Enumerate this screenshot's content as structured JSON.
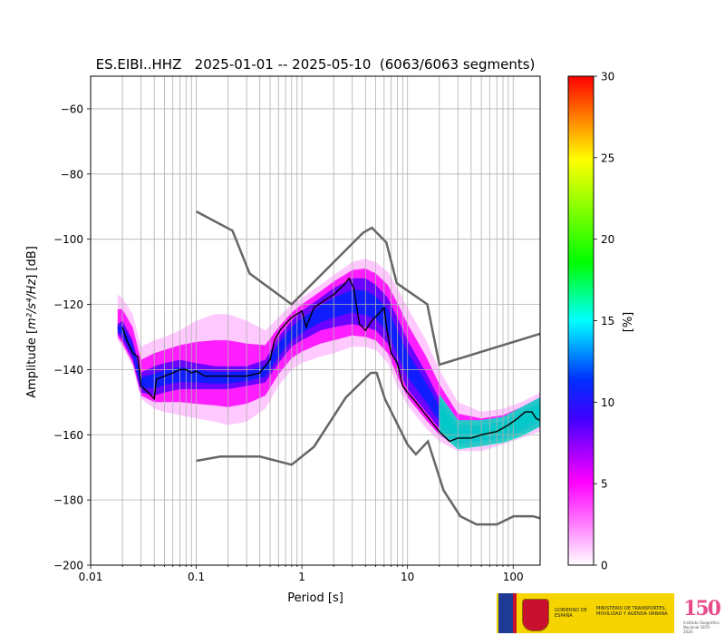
{
  "chart_data": {
    "type": "heatmap",
    "title": "ES.EIBI..HHZ   2025-01-01 -- 2025-05-10  (6063/6063 segments)",
    "xlabel": "Period [s]",
    "ylabel": "Amplitude [m²/s⁴/Hz] [dB]",
    "ylabel_base": "Amplitude [",
    "ylabel_math": "m²/s⁴/Hz",
    "ylabel_end": "] [dB]",
    "x_scale": "log",
    "xlim": [
      0.01,
      180
    ],
    "ylim": [
      -200,
      -50
    ],
    "x_ticks": [
      {
        "value": 0.01,
        "label": "0.01"
      },
      {
        "value": 0.1,
        "label": "0.1"
      },
      {
        "value": 1,
        "label": "1"
      },
      {
        "value": 10,
        "label": "10"
      },
      {
        "value": 100,
        "label": "100"
      }
    ],
    "y_ticks": [
      {
        "value": -60,
        "label": "−60"
      },
      {
        "value": -80,
        "label": "−80"
      },
      {
        "value": -100,
        "label": "−100"
      },
      {
        "value": -120,
        "label": "−120"
      },
      {
        "value": -140,
        "label": "−140"
      },
      {
        "value": -160,
        "label": "−160"
      },
      {
        "value": -180,
        "label": "−180"
      },
      {
        "value": -200,
        "label": "−200"
      }
    ],
    "grid": true,
    "colorbar": {
      "label": "[%]",
      "range": [
        0,
        30
      ],
      "ticks": [
        {
          "value": 0,
          "label": "0"
        },
        {
          "value": 5,
          "label": "5"
        },
        {
          "value": 10,
          "label": "10"
        },
        {
          "value": 15,
          "label": "15"
        },
        {
          "value": 20,
          "label": "20"
        },
        {
          "value": 25,
          "label": "25"
        },
        {
          "value": 30,
          "label": "30"
        }
      ],
      "colors": [
        "#ffffff",
        "#ff00ff",
        "#0000ff",
        "#00ffff",
        "#00ff00",
        "#ffff00",
        "#ff0000"
      ]
    },
    "noise_model_high": [
      [
        0.1,
        -91.5
      ],
      [
        0.22,
        -97.4
      ],
      [
        0.32,
        -110.5
      ],
      [
        0.8,
        -120
      ],
      [
        3.8,
        -98
      ],
      [
        4.6,
        -96.5
      ],
      [
        6.3,
        -101
      ],
      [
        7.9,
        -113.5
      ],
      [
        15.4,
        -120
      ],
      [
        20,
        -138.5
      ],
      [
        180,
        -129
      ]
    ],
    "noise_model_low": [
      [
        0.1,
        -168
      ],
      [
        0.17,
        -166.7
      ],
      [
        0.4,
        -166.7
      ],
      [
        0.8,
        -169.2
      ],
      [
        1.3,
        -163.7
      ],
      [
        2.6,
        -148.6
      ],
      [
        4.5,
        -141
      ],
      [
        5.1,
        -141
      ],
      [
        6.1,
        -149
      ],
      [
        10,
        -163
      ],
      [
        12,
        -166
      ],
      [
        15.6,
        -162
      ],
      [
        21.9,
        -177
      ],
      [
        31.6,
        -185
      ],
      [
        45,
        -187.5
      ],
      [
        70,
        -187.5
      ],
      [
        101,
        -185
      ],
      [
        154,
        -185
      ],
      [
        180,
        -185.6
      ]
    ],
    "mode_line": [
      [
        0.02,
        -127
      ],
      [
        0.022,
        -131
      ],
      [
        0.025,
        -135
      ],
      [
        0.028,
        -136
      ],
      [
        0.03,
        -145
      ],
      [
        0.035,
        -147
      ],
      [
        0.04,
        -149
      ],
      [
        0.042,
        -143
      ],
      [
        0.05,
        -142
      ],
      [
        0.06,
        -141
      ],
      [
        0.07,
        -140
      ],
      [
        0.08,
        -140
      ],
      [
        0.09,
        -141
      ],
      [
        0.1,
        -140.5
      ],
      [
        0.12,
        -142
      ],
      [
        0.15,
        -142
      ],
      [
        0.2,
        -142
      ],
      [
        0.25,
        -142
      ],
      [
        0.3,
        -142
      ],
      [
        0.4,
        -141
      ],
      [
        0.5,
        -137
      ],
      [
        0.55,
        -131
      ],
      [
        0.62,
        -128
      ],
      [
        0.7,
        -126
      ],
      [
        0.8,
        -124
      ],
      [
        1.0,
        -122
      ],
      [
        1.1,
        -127
      ],
      [
        1.3,
        -121
      ],
      [
        1.6,
        -119
      ],
      [
        2.0,
        -117
      ],
      [
        2.5,
        -114
      ],
      [
        2.8,
        -112
      ],
      [
        3.1,
        -115
      ],
      [
        3.5,
        -126
      ],
      [
        4.0,
        -128
      ],
      [
        4.6,
        -125
      ],
      [
        5.3,
        -123
      ],
      [
        6.0,
        -121
      ],
      [
        6.4,
        -128
      ],
      [
        7.0,
        -135
      ],
      [
        8.0,
        -138
      ],
      [
        9.0,
        -145
      ],
      [
        10,
        -147
      ],
      [
        12,
        -150
      ],
      [
        15,
        -154
      ],
      [
        20,
        -159
      ],
      [
        25,
        -162
      ],
      [
        30,
        -161
      ],
      [
        40,
        -161
      ],
      [
        50,
        -160
      ],
      [
        70,
        -159
      ],
      [
        90,
        -157
      ],
      [
        110,
        -155
      ],
      [
        130,
        -153
      ],
      [
        150,
        -153
      ],
      [
        165,
        -155
      ],
      [
        180,
        -155.6
      ]
    ],
    "psd_band": [
      {
        "period": 0.018,
        "top": -117,
        "bottom": -131,
        "core_top": -126,
        "core_bottom": -129
      },
      {
        "period": 0.02,
        "top": -118,
        "bottom": -133,
        "core_top": -125,
        "core_bottom": -131
      },
      {
        "period": 0.025,
        "top": -123,
        "bottom": -139,
        "core_top": -131,
        "core_bottom": -137
      },
      {
        "period": 0.03,
        "top": -133,
        "bottom": -149,
        "core_top": -141,
        "core_bottom": -147
      },
      {
        "period": 0.04,
        "top": -131,
        "bottom": -152,
        "core_top": -139,
        "core_bottom": -148
      },
      {
        "period": 0.05,
        "top": -130,
        "bottom": -153,
        "core_top": -138,
        "core_bottom": -147
      },
      {
        "period": 0.07,
        "top": -128,
        "bottom": -154,
        "core_top": -137,
        "core_bottom": -146
      },
      {
        "period": 0.1,
        "top": -125,
        "bottom": -155,
        "core_top": -138,
        "core_bottom": -146
      },
      {
        "period": 0.15,
        "top": -123,
        "bottom": -156,
        "core_top": -139,
        "core_bottom": -146
      },
      {
        "period": 0.2,
        "top": -123,
        "bottom": -157,
        "core_top": -139,
        "core_bottom": -146
      },
      {
        "period": 0.3,
        "top": -125,
        "bottom": -156,
        "core_top": -139,
        "core_bottom": -145
      },
      {
        "period": 0.45,
        "top": -128,
        "bottom": -152,
        "core_top": -137,
        "core_bottom": -144
      },
      {
        "period": 0.6,
        "top": -124,
        "bottom": -145,
        "core_top": -130,
        "core_bottom": -138
      },
      {
        "period": 0.8,
        "top": -120,
        "bottom": -140,
        "core_top": -125,
        "core_bottom": -133
      },
      {
        "period": 1.0,
        "top": -118,
        "bottom": -138,
        "core_top": -122,
        "core_bottom": -131
      },
      {
        "period": 1.5,
        "top": -114,
        "bottom": -136,
        "core_top": -118,
        "core_bottom": -128
      },
      {
        "period": 2.0,
        "top": -111,
        "bottom": -135,
        "core_top": -115,
        "core_bottom": -127
      },
      {
        "period": 3.0,
        "top": -107,
        "bottom": -133,
        "core_top": -112,
        "core_bottom": -126
      },
      {
        "period": 4.0,
        "top": -106,
        "bottom": -133,
        "core_top": -112,
        "core_bottom": -127
      },
      {
        "period": 5.0,
        "top": -107,
        "bottom": -134,
        "core_top": -114,
        "core_bottom": -128
      },
      {
        "period": 6.5,
        "top": -110,
        "bottom": -138,
        "core_top": -118,
        "core_bottom": -132
      },
      {
        "period": 8.0,
        "top": -115,
        "bottom": -145,
        "core_top": -124,
        "core_bottom": -139
      },
      {
        "period": 10,
        "top": -121,
        "bottom": -151,
        "core_top": -131,
        "core_bottom": -146
      },
      {
        "period": 15,
        "top": -131,
        "bottom": -158,
        "core_top": -141,
        "core_bottom": -153
      },
      {
        "period": 20,
        "top": -140,
        "bottom": -162,
        "core_top": -149,
        "core_bottom": -158
      },
      {
        "period": 30,
        "top": -150,
        "bottom": -165,
        "core_top": -157,
        "core_bottom": -163
      },
      {
        "period": 50,
        "top": -153,
        "bottom": -165,
        "core_top": -157,
        "core_bottom": -162
      },
      {
        "period": 80,
        "top": -152,
        "bottom": -163,
        "core_top": -156,
        "core_bottom": -161
      },
      {
        "period": 120,
        "top": -150,
        "bottom": -161,
        "core_top": -153,
        "core_bottom": -159
      },
      {
        "period": 180,
        "top": -147,
        "bottom": -159,
        "core_top": -150,
        "core_bottom": -156
      }
    ]
  },
  "footer": {
    "gov_text": "GOBIERNO DE ESPAÑA",
    "ministry_text": "MINISTERIO DE TRANSPORTES, MOVILIDAD Y AGENDA URBANA",
    "ign_logo_text": "150",
    "ign_small_text": "Instituto Geográfico Nacional 1870-2020"
  }
}
